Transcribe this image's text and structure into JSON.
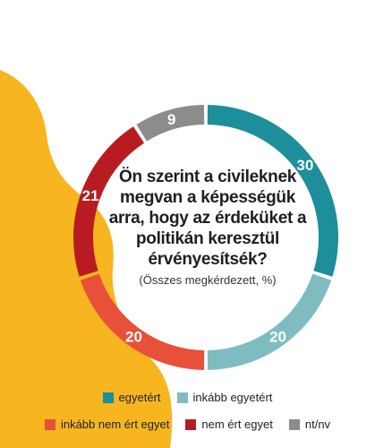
{
  "chart_data": {
    "type": "pie",
    "variant": "donut",
    "title": "Ön szerint a civileknek megvan a képességük arra, hogy az érdeküket a politikán keresztül érvényesítsék?",
    "subtitle": "(Összes megkérdezett, %)",
    "unit": "%",
    "legend_position": "bottom",
    "categories": [
      "egyetért",
      "inkább egyetért",
      "inkább nem ért egyet",
      "nem ért egyet",
      "nt/nv"
    ],
    "values": [
      30,
      20,
      20,
      21,
      9
    ],
    "data_labels": [
      "30",
      "20",
      "20",
      "21",
      "9"
    ],
    "colors": [
      "#1c8f9b",
      "#7fbcc2",
      "#e8503a",
      "#b81c22",
      "#8c8c8c"
    ]
  },
  "background": {
    "decoration": "yellow-abstract-shape",
    "color": "#f7b51f"
  }
}
